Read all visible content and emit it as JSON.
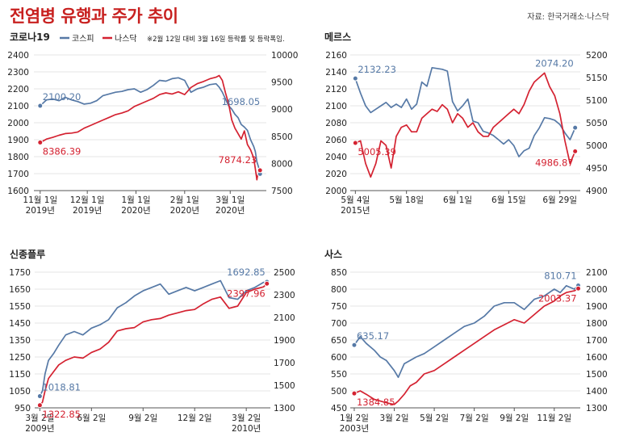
{
  "header": {
    "title": "전염병 유행과 주가 추이",
    "source": "자료: 한국거래소·나스닥"
  },
  "legend": {
    "kospi": "코스피",
    "nasdaq": "나스닥",
    "note": "※2월 12일 대비 3월 16일 등락률 및 등락폭임."
  },
  "colors": {
    "kospi": "#5679a6",
    "nasdaq": "#d42231",
    "grid": "#cccccc",
    "text": "#222222"
  },
  "chart_data": [
    {
      "id": "covid",
      "type": "line",
      "title": "코로나19",
      "x_ticks": [
        {
          "x": 0,
          "label": "11월 1일",
          "sub": "2019년"
        },
        {
          "x": 30,
          "label": "12월 1일",
          "sub": "2019년"
        },
        {
          "x": 61,
          "label": "1월 1일",
          "sub": "2020년"
        },
        {
          "x": 92,
          "label": "2월 1일",
          "sub": "2020년"
        },
        {
          "x": 121,
          "label": "3월 1일",
          "sub": "2020년"
        }
      ],
      "xlim": [
        -4,
        144
      ],
      "left_axis": {
        "min": 1600,
        "max": 2400,
        "ticks": [
          1600,
          1700,
          1800,
          1900,
          2000,
          2100,
          2200,
          2300,
          2400
        ]
      },
      "right_axis": {
        "min": 7500,
        "max": 10000,
        "ticks": [
          7500,
          8000,
          8500,
          9000,
          9500,
          10000
        ]
      },
      "series": [
        {
          "name": "코스피",
          "axis": "left",
          "x": [
            0,
            4,
            8,
            12,
            16,
            20,
            24,
            28,
            32,
            36,
            40,
            44,
            48,
            52,
            56,
            60,
            64,
            68,
            72,
            76,
            80,
            84,
            88,
            92,
            96,
            100,
            104,
            108,
            112,
            114,
            116,
            118,
            120,
            122,
            124,
            126,
            128,
            130,
            132,
            134,
            136,
            137,
            138,
            139,
            140
          ],
          "y": [
            2100,
            2135,
            2140,
            2130,
            2150,
            2135,
            2125,
            2110,
            2115,
            2130,
            2160,
            2170,
            2180,
            2185,
            2195,
            2200,
            2180,
            2195,
            2220,
            2250,
            2245,
            2260,
            2265,
            2250,
            2180,
            2200,
            2210,
            2225,
            2230,
            2210,
            2180,
            2140,
            2100,
            2080,
            2050,
            2030,
            1990,
            1975,
            1955,
            1900,
            1860,
            1830,
            1770,
            1740,
            1698
          ]
        },
        {
          "name": "나스닥",
          "axis": "right",
          "x": [
            0,
            4,
            8,
            12,
            16,
            20,
            24,
            28,
            32,
            36,
            40,
            44,
            48,
            52,
            56,
            60,
            64,
            68,
            72,
            76,
            80,
            84,
            88,
            92,
            96,
            100,
            104,
            108,
            112,
            114,
            116,
            118,
            120,
            122,
            124,
            126,
            128,
            130,
            132,
            134,
            136,
            137,
            138,
            139,
            140
          ],
          "y": [
            8386,
            8450,
            8480,
            8520,
            8550,
            8560,
            8580,
            8650,
            8700,
            8750,
            8800,
            8850,
            8900,
            8930,
            8970,
            9050,
            9100,
            9150,
            9200,
            9270,
            9300,
            9280,
            9320,
            9270,
            9400,
            9470,
            9510,
            9560,
            9590,
            9620,
            9530,
            9300,
            9100,
            8800,
            8650,
            8550,
            8450,
            8600,
            8350,
            8250,
            8100,
            7900,
            7700,
            7874,
            7874
          ]
        }
      ],
      "annotations": [
        {
          "series": "코스피",
          "x": 0,
          "y": 2100.2,
          "text": "2100.20"
        },
        {
          "series": "나스닥",
          "x": 0,
          "y": 8386.39,
          "text": "8386.39"
        },
        {
          "series": "코스피",
          "x": 140,
          "y": 1698.05,
          "text": "1698.05"
        },
        {
          "series": "나스닥",
          "x": 140,
          "y": 7874.23,
          "text": "7874.23"
        }
      ]
    },
    {
      "id": "mers",
      "type": "line",
      "title": "메르스",
      "x_ticks": [
        {
          "x": 0,
          "label": "5월 4일",
          "sub": "2015년"
        },
        {
          "x": 10,
          "label": "5월 18일",
          "sub": ""
        },
        {
          "x": 20,
          "label": "6월 1일",
          "sub": ""
        },
        {
          "x": 30,
          "label": "6월 15일",
          "sub": ""
        },
        {
          "x": 40,
          "label": "6월 29일",
          "sub": ""
        }
      ],
      "xlim": [
        -1,
        44
      ],
      "left_axis": {
        "min": 2000,
        "max": 2160,
        "ticks": [
          2000,
          2020,
          2040,
          2060,
          2080,
          2100,
          2120,
          2140,
          2160
        ]
      },
      "right_axis": {
        "min": 4900,
        "max": 5200,
        "ticks": [
          4900,
          4950,
          5000,
          5050,
          5100,
          5150,
          5200
        ]
      },
      "series": [
        {
          "name": "코스피",
          "axis": "left",
          "x": [
            0,
            1,
            2,
            3,
            4,
            5,
            6,
            7,
            8,
            9,
            10,
            11,
            12,
            13,
            14,
            15,
            16,
            17,
            18,
            19,
            20,
            21,
            22,
            23,
            24,
            25,
            26,
            27,
            28,
            29,
            30,
            31,
            32,
            33,
            34,
            35,
            36,
            37,
            38,
            39,
            40,
            41,
            42,
            43
          ],
          "y": [
            2132,
            2115,
            2100,
            2092,
            2096,
            2100,
            2104,
            2098,
            2102,
            2098,
            2108,
            2096,
            2102,
            2128,
            2123,
            2145,
            2144,
            2143,
            2141,
            2105,
            2094,
            2100,
            2108,
            2082,
            2080,
            2070,
            2068,
            2065,
            2060,
            2055,
            2060,
            2053,
            2040,
            2047,
            2050,
            2065,
            2074,
            2086,
            2085,
            2083,
            2078,
            2068,
            2060,
            2074
          ]
        },
        {
          "name": "나스닥",
          "axis": "right",
          "x": [
            0,
            1,
            2,
            3,
            4,
            5,
            6,
            7,
            8,
            9,
            10,
            11,
            12,
            13,
            14,
            15,
            16,
            17,
            18,
            19,
            20,
            21,
            22,
            23,
            24,
            25,
            26,
            27,
            28,
            29,
            30,
            31,
            32,
            33,
            34,
            35,
            36,
            37,
            38,
            39,
            40,
            41,
            42,
            43
          ],
          "y": [
            5005,
            5010,
            4960,
            4930,
            4960,
            5010,
            5000,
            4950,
            5020,
            5040,
            5045,
            5030,
            5030,
            5060,
            5070,
            5080,
            5075,
            5090,
            5080,
            5050,
            5070,
            5060,
            5040,
            5050,
            5030,
            5020,
            5020,
            5040,
            5050,
            5060,
            5070,
            5080,
            5070,
            5090,
            5120,
            5140,
            5150,
            5160,
            5130,
            5110,
            5070,
            5010,
            4960,
            4987
          ]
        }
      ],
      "annotations": [
        {
          "series": "코스피",
          "x": 0,
          "y": 2132.23,
          "text": "2132.23"
        },
        {
          "series": "나스닥",
          "x": 0,
          "y": 5005.39,
          "text": "5005.39"
        },
        {
          "series": "코스피",
          "x": 43,
          "y": 2074.2,
          "text": "2074.20"
        },
        {
          "series": "나스닥",
          "x": 43,
          "y": 4986.87,
          "text": "4986.87"
        }
      ]
    },
    {
      "id": "sflu",
      "type": "line",
      "title": "신종플루",
      "x_ticks": [
        {
          "x": 0,
          "label": "3월 2일",
          "sub": "2009년"
        },
        {
          "x": 3,
          "label": "6월 2일",
          "sub": ""
        },
        {
          "x": 6,
          "label": "9월 2일",
          "sub": ""
        },
        {
          "x": 9,
          "label": "12월 2일",
          "sub": ""
        },
        {
          "x": 12,
          "label": "3월 2일",
          "sub": "2010년"
        }
      ],
      "xlim": [
        -0.3,
        13.4
      ],
      "left_axis": {
        "min": 950,
        "max": 1750,
        "ticks": [
          950,
          1050,
          1150,
          1250,
          1350,
          1450,
          1550,
          1650,
          1750
        ]
      },
      "right_axis": {
        "min": 1300,
        "max": 2500,
        "ticks": [
          1300,
          1500,
          1700,
          1900,
          2100,
          2300,
          2500
        ]
      },
      "series": [
        {
          "name": "코스피",
          "axis": "left",
          "x": [
            0,
            0.15,
            0.3,
            0.5,
            0.8,
            1.1,
            1.5,
            2,
            2.5,
            3,
            3.5,
            4,
            4.5,
            5,
            5.5,
            6,
            6.5,
            7,
            7.5,
            8,
            8.5,
            9,
            9.5,
            10,
            10.5,
            11,
            11.5,
            12,
            12.5,
            13,
            13.2
          ],
          "y": [
            1019,
            1050,
            1150,
            1230,
            1270,
            1320,
            1380,
            1400,
            1380,
            1420,
            1440,
            1470,
            1540,
            1570,
            1610,
            1640,
            1660,
            1680,
            1620,
            1640,
            1660,
            1640,
            1660,
            1680,
            1700,
            1600,
            1590,
            1640,
            1660,
            1690,
            1693
          ]
        },
        {
          "name": "나스닥",
          "axis": "right",
          "x": [
            0,
            0.15,
            0.3,
            0.5,
            0.8,
            1.1,
            1.5,
            2,
            2.5,
            3,
            3.5,
            4,
            4.5,
            5,
            5.5,
            6,
            6.5,
            7,
            7.5,
            8,
            8.5,
            9,
            9.5,
            10,
            10.5,
            11,
            11.5,
            12,
            12.5,
            13,
            13.2
          ],
          "y": [
            1323,
            1350,
            1450,
            1560,
            1620,
            1680,
            1720,
            1750,
            1740,
            1790,
            1820,
            1880,
            1980,
            2000,
            2010,
            2060,
            2080,
            2090,
            2120,
            2140,
            2160,
            2170,
            2220,
            2260,
            2280,
            2180,
            2200,
            2320,
            2350,
            2370,
            2398
          ]
        }
      ],
      "annotations": [
        {
          "series": "코스피",
          "x": 0,
          "y": 1018.81,
          "text": "1018.81"
        },
        {
          "series": "나스닥",
          "x": 0,
          "y": 1322.85,
          "text": "1322.85"
        },
        {
          "series": "코스피",
          "x": 13.2,
          "y": 1692.85,
          "text": "1692.85"
        },
        {
          "series": "나스닥",
          "x": 13.2,
          "y": 2397.96,
          "text": "2397.96"
        }
      ]
    },
    {
      "id": "sars",
      "type": "line",
      "title": "사스",
      "x_ticks": [
        {
          "x": 0,
          "label": "1월 2일",
          "sub": "2003년"
        },
        {
          "x": 2,
          "label": "3월 2일",
          "sub": ""
        },
        {
          "x": 4,
          "label": "5월 2일",
          "sub": ""
        },
        {
          "x": 6,
          "label": "7월 2일",
          "sub": ""
        },
        {
          "x": 8,
          "label": "9월 2일",
          "sub": ""
        },
        {
          "x": 10,
          "label": "11월 2일",
          "sub": ""
        }
      ],
      "xlim": [
        -0.2,
        11.3
      ],
      "left_axis": {
        "min": 450,
        "max": 850,
        "ticks": [
          450,
          500,
          550,
          600,
          650,
          700,
          750,
          800,
          850
        ]
      },
      "right_axis": {
        "min": 1300,
        "max": 2100,
        "ticks": [
          1300,
          1400,
          1500,
          1600,
          1700,
          1800,
          1900,
          2000,
          2100
        ]
      },
      "series": [
        {
          "name": "코스피",
          "axis": "left",
          "x": [
            0,
            0.3,
            0.6,
            1,
            1.3,
            1.6,
            2,
            2.2,
            2.5,
            2.8,
            3.1,
            3.5,
            4,
            4.5,
            5,
            5.5,
            6,
            6.5,
            7,
            7.5,
            8,
            8.5,
            9,
            9.5,
            10,
            10.3,
            10.6,
            11,
            11.2
          ],
          "y": [
            635,
            660,
            640,
            620,
            600,
            590,
            560,
            540,
            580,
            590,
            600,
            610,
            630,
            650,
            670,
            690,
            700,
            720,
            750,
            760,
            760,
            740,
            770,
            780,
            800,
            790,
            810,
            800,
            811
          ]
        },
        {
          "name": "나스닥",
          "axis": "right",
          "x": [
            0,
            0.3,
            0.6,
            1,
            1.3,
            1.6,
            2,
            2.2,
            2.5,
            2.8,
            3.1,
            3.5,
            4,
            4.5,
            5,
            5.5,
            6,
            6.5,
            7,
            7.5,
            8,
            8.5,
            9,
            9.5,
            10,
            10.3,
            10.6,
            11,
            11.2
          ],
          "y": [
            1385,
            1400,
            1380,
            1350,
            1340,
            1330,
            1320,
            1340,
            1380,
            1430,
            1450,
            1500,
            1520,
            1560,
            1600,
            1640,
            1680,
            1720,
            1760,
            1790,
            1820,
            1800,
            1850,
            1900,
            1930,
            1960,
            1980,
            1990,
            2003
          ]
        }
      ],
      "annotations": [
        {
          "series": "코스피",
          "x": 0,
          "y": 635.17,
          "text": "635.17"
        },
        {
          "series": "나스닥",
          "x": 0,
          "y": 1384.85,
          "text": "1384.85"
        },
        {
          "series": "코스피",
          "x": 11.2,
          "y": 810.71,
          "text": "810.71"
        },
        {
          "series": "나스닥",
          "x": 11.2,
          "y": 2003.37,
          "text": "2003.37"
        }
      ]
    }
  ]
}
